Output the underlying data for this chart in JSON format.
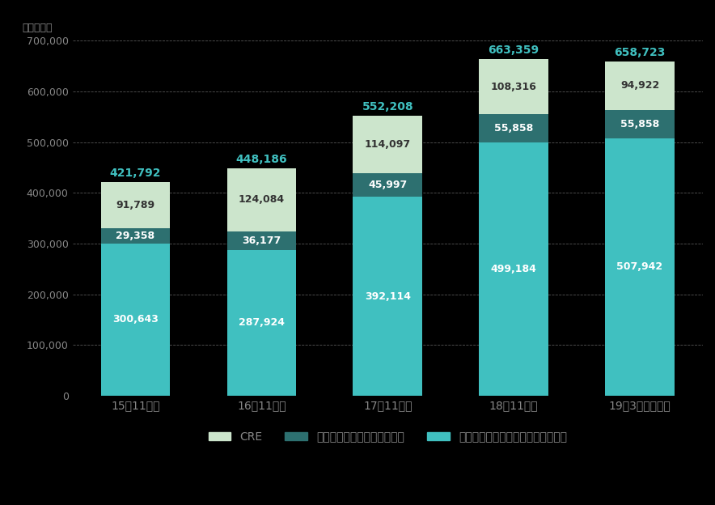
{
  "categories": [
    "15年11月末",
    "16年11月末",
    "17年11月末",
    "18年11月末",
    "19年3月末見込み"
  ],
  "cre": [
    91789,
    124084,
    114097,
    108316,
    94922
  ],
  "reit": [
    29358,
    36177,
    45997,
    55858,
    55858
  ],
  "private": [
    300643,
    287924,
    392114,
    499184,
    507942
  ],
  "totals": [
    421792,
    448186,
    552208,
    663359,
    658723
  ],
  "cre_color": "#cce5cc",
  "reit_color": "#2d7070",
  "private_color": "#40c0c0",
  "background_color": "#000000",
  "plot_bg_color": "#000000",
  "text_color_dark": "#333333",
  "text_color_light": "#ffffff",
  "grid_color": "#555555",
  "ylabel": "（百万円）",
  "ylim": [
    0,
    700000
  ],
  "yticks": [
    0,
    100000,
    200000,
    300000,
    400000,
    500000,
    600000,
    700000
  ],
  "ytick_labels": [
    "0",
    "100,000",
    "200,000",
    "300,000",
    "400,000",
    "500,000",
    "600,000",
    "700,000"
  ],
  "legend_labels": [
    "CRE",
    "リートアセットマネジメント",
    "私募ファンドアセットマネジメント"
  ],
  "bar_width": 0.55,
  "total_label_color": "#40c0c0",
  "figsize": [
    8.84,
    6.24
  ],
  "dpi": 100
}
